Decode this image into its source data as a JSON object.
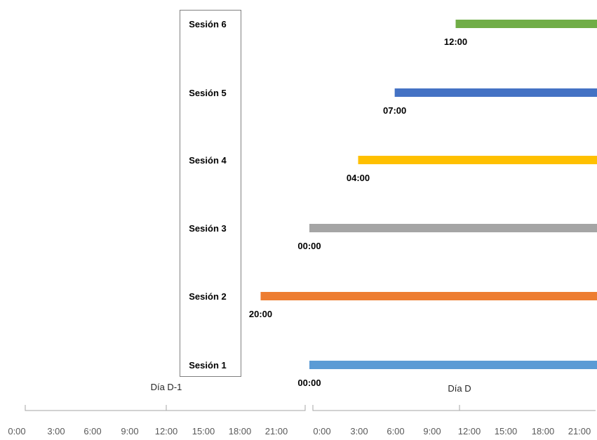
{
  "chart_data": {
    "type": "bar",
    "orientation": "horizontal",
    "x_unit": "hours from 0:00 of Día D-1",
    "x_range": [
      0,
      48
    ],
    "categories": [
      "Sesión 1",
      "Sesión 2",
      "Sesión 3",
      "Sesión 4",
      "Sesión 5",
      "Sesión 6"
    ],
    "series": [
      {
        "category": "Sesión 1",
        "start": 24,
        "end": 48,
        "start_label": "00:00",
        "color": "#5B9BD5"
      },
      {
        "category": "Sesión 2",
        "start": 20,
        "end": 48,
        "start_label": "20:00",
        "color": "#ED7D31"
      },
      {
        "category": "Sesión 3",
        "start": 24,
        "end": 48,
        "start_label": "00:00",
        "color": "#A5A5A5"
      },
      {
        "category": "Sesión 4",
        "start": 28,
        "end": 48,
        "start_label": "04:00",
        "color": "#FFC000"
      },
      {
        "category": "Sesión 5",
        "start": 31,
        "end": 48,
        "start_label": "07:00",
        "color": "#4472C4"
      },
      {
        "category": "Sesión 6",
        "start": 36,
        "end": 48,
        "start_label": "12:00",
        "color": "#70AD47"
      }
    ],
    "x_tick_labels": [
      "0:00",
      "3:00",
      "6:00",
      "9:00",
      "12:00",
      "15:00",
      "18:00",
      "21:00",
      "0:00",
      "3:00",
      "6:00",
      "9:00",
      "12:00",
      "15:00",
      "18:00",
      "21:00"
    ],
    "x_ticks": [
      0,
      3,
      6,
      9,
      12,
      15,
      18,
      21,
      24,
      27,
      30,
      33,
      36,
      39,
      42,
      45
    ],
    "groups": [
      {
        "label": "Día D-1",
        "start": 0,
        "end": 24
      },
      {
        "label": "Día D",
        "start": 24,
        "end": 48
      }
    ],
    "grid": false,
    "legend": "none"
  }
}
